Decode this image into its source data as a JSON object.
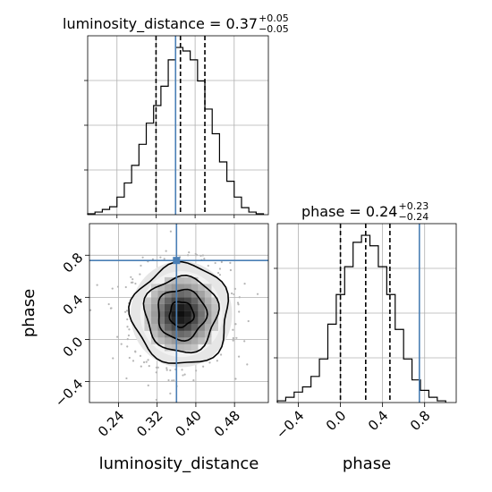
{
  "chart_data": [
    {
      "type": "histogram",
      "panel": "luminosity_distance",
      "title_text": "luminosity_distance = 0.37",
      "title_sup": "+0.05",
      "title_sub": "−0.05",
      "xlim": [
        0.18,
        0.55
      ],
      "bin_edges": [
        0.18,
        0.195,
        0.21,
        0.225,
        0.24,
        0.255,
        0.27,
        0.285,
        0.3,
        0.315,
        0.33,
        0.345,
        0.36,
        0.375,
        0.39,
        0.405,
        0.42,
        0.435,
        0.45,
        0.465,
        0.48,
        0.495,
        0.51,
        0.525,
        0.54
      ],
      "counts": [
        0.5,
        1.5,
        3,
        4.5,
        10,
        18,
        28,
        40,
        52,
        62,
        73,
        88,
        95,
        93,
        88,
        76,
        60,
        46,
        30,
        19,
        10,
        4,
        1.5,
        0.5
      ],
      "quantiles": [
        0.32,
        0.37,
        0.42
      ],
      "truth": 0.36
    },
    {
      "type": "histogram",
      "panel": "phase",
      "title_text": "phase = 0.24",
      "title_sup": "+0.23",
      "title_sub": "−0.24",
      "xlim": [
        -0.6,
        1.1
      ],
      "xticks": [
        "−0.4",
        "0.0",
        "0.4",
        "0.8"
      ],
      "xtick_values": [
        -0.4,
        0.0,
        0.4,
        0.8
      ],
      "xlabel": "phase",
      "bin_edges": [
        -0.6,
        -0.52,
        -0.44,
        -0.36,
        -0.28,
        -0.2,
        -0.12,
        -0.04,
        0.04,
        0.12,
        0.2,
        0.28,
        0.36,
        0.44,
        0.52,
        0.6,
        0.68,
        0.76,
        0.84,
        0.92,
        1.0
      ],
      "counts": [
        1,
        3,
        6,
        9,
        15,
        25,
        45,
        62,
        78,
        92,
        96,
        90,
        78,
        62,
        42,
        25,
        13,
        7,
        3,
        1
      ],
      "quantiles": [
        0.0,
        0.24,
        0.47
      ],
      "truth": 0.75
    },
    {
      "type": "heatmap",
      "panel": "phase vs luminosity_distance",
      "xlim": [
        0.18,
        0.55
      ],
      "ylim": [
        -0.6,
        1.1
      ],
      "xticks": [
        "0.24",
        "0.32",
        "0.40",
        "0.48"
      ],
      "xtick_values": [
        0.24,
        0.32,
        0.4,
        0.48
      ],
      "yticks": [
        "−0.4",
        "0.0",
        "0.4",
        "0.8"
      ],
      "ytick_values": [
        -0.4,
        0.0,
        0.4,
        0.8
      ],
      "xlabel": "luminosity_distance",
      "ylabel": "phase",
      "center": [
        0.37,
        0.24
      ],
      "sigma": [
        0.05,
        0.24
      ],
      "contour_levels_sigma": [
        0.5,
        1.0,
        1.5,
        2.0
      ],
      "truth": [
        0.36,
        0.75
      ]
    }
  ],
  "colors": {
    "truth": "#4a7fb5",
    "hist": "#000000",
    "grid": "#b0b0b0"
  }
}
